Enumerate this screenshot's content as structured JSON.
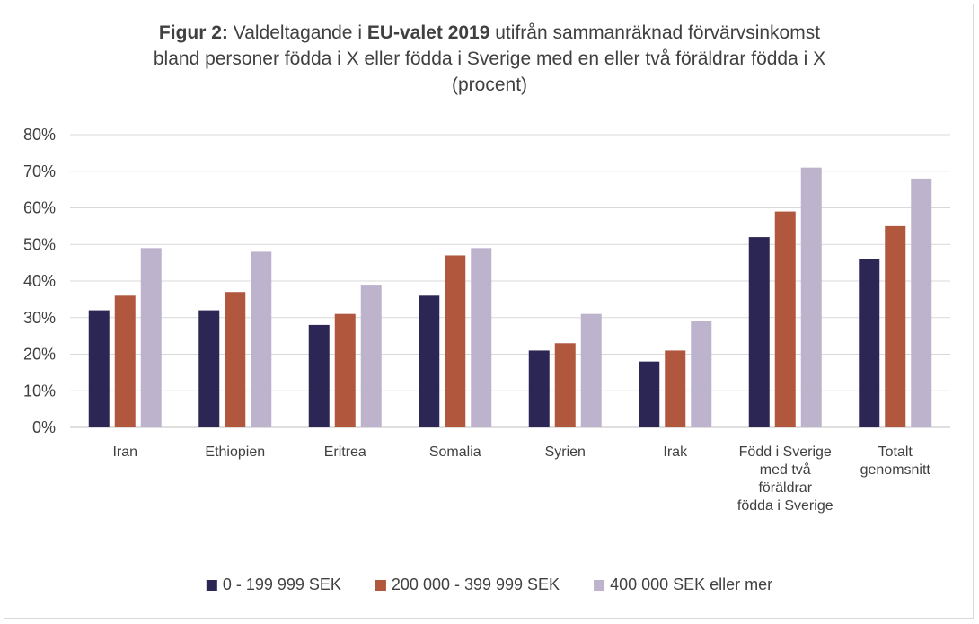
{
  "chart_data": {
    "type": "bar",
    "title_parts": [
      {
        "text": "Figur 2:",
        "bold": true
      },
      {
        "text": " Valdeltagande i ",
        "bold": false
      },
      {
        "text": "EU-valet 2019",
        "bold": true
      },
      {
        "text": " utifrån sammanräknad förvärvsinkomst",
        "bold": false
      },
      {
        "text": "\n",
        "bold": false
      },
      {
        "text": "bland personer födda i X eller födda i Sverige med en eller två föräldrar födda i X",
        "bold": false
      },
      {
        "text": "\n",
        "bold": false
      },
      {
        "text": "(procent)",
        "bold": false
      }
    ],
    "categories": [
      [
        "Iran"
      ],
      [
        "Ethiopien"
      ],
      [
        "Eritrea"
      ],
      [
        "Somalia"
      ],
      [
        "Syrien"
      ],
      [
        "Irak"
      ],
      [
        "Född i Sverige",
        "med två",
        "föräldrar",
        "födda i Sverige"
      ],
      [
        "Totalt",
        "genomsnitt"
      ]
    ],
    "series": [
      {
        "name": "0 - 199 999 SEK",
        "color": "#2b2654",
        "values": [
          32,
          32,
          28,
          36,
          21,
          18,
          52,
          46
        ]
      },
      {
        "name": "200 000 - 399 999 SEK",
        "color": "#b0573d",
        "values": [
          36,
          37,
          31,
          47,
          23,
          21,
          59,
          55
        ]
      },
      {
        "name": "400 000 SEK eller mer",
        "color": "#bdb3cc",
        "values": [
          49,
          48,
          39,
          49,
          31,
          29,
          71,
          68
        ]
      }
    ],
    "ylim": [
      0,
      80
    ],
    "yticks": [
      "0%",
      "10%",
      "20%",
      "30%",
      "40%",
      "50%",
      "60%",
      "70%",
      "80%"
    ],
    "grid": true,
    "legend_position": "bottom"
  }
}
